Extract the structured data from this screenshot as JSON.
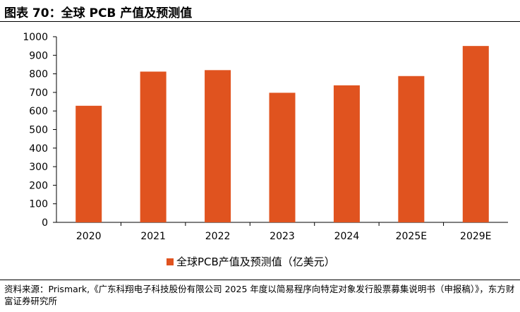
{
  "header": {
    "title": "图表 70：全球 PCB 产值及预测值"
  },
  "chart_data": {
    "type": "bar",
    "categories": [
      "2020",
      "2021",
      "2022",
      "2023",
      "2024",
      "2025E",
      "2029E"
    ],
    "series": [
      {
        "name": "全球PCB产值及预测值（亿美元）",
        "values": [
          628,
          812,
          820,
          698,
          738,
          788,
          950
        ]
      }
    ],
    "yticks": [
      "0",
      "100",
      "200",
      "300",
      "400",
      "500",
      "600",
      "700",
      "800",
      "900",
      "1000"
    ],
    "ylim": [
      0,
      1000
    ],
    "grid": false,
    "legend_position": "bottom",
    "bar_color": "#E0531F"
  },
  "footer": {
    "source": "资料来源：Prismark,《广东科翔电子科技股份有限公司 2025 年度以简易程序向特定对象发行股票募集说明书（申报稿）》，东方财富证券研究所"
  }
}
